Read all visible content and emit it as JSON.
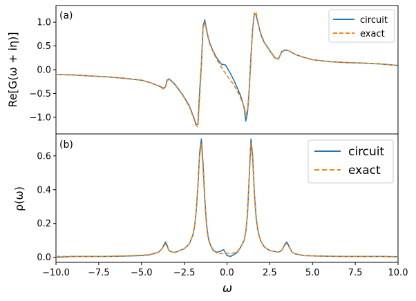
{
  "colors": {
    "circuit": "#1f77b4",
    "exact": "#ff7f0e",
    "axes": "#000000",
    "background": "#ffffff"
  },
  "xaxis": {
    "label": "ω",
    "ticks": [
      -10.0,
      -7.5,
      -5.0,
      -2.5,
      0.0,
      2.5,
      5.0,
      7.5,
      10.0
    ],
    "tick_labels": [
      "−10.0",
      "−7.5",
      "−5.0",
      "−2.5",
      "0.0",
      "2.5",
      "5.0",
      "7.5",
      "10.0"
    ]
  },
  "panels": [
    {
      "tag": "(a)",
      "ylabel": "Re[G(ω + iη)]",
      "ylim": [
        -1.35,
        1.35
      ],
      "yticks": [
        -1.0,
        -0.5,
        0.0,
        0.5,
        1.0
      ],
      "ytick_labels": [
        "−1.0",
        "−0.5",
        "0.0",
        "0.5",
        "1.0"
      ],
      "legend": {
        "position": "top-right",
        "items": [
          "circuit",
          "exact"
        ]
      }
    },
    {
      "tag": "(b)",
      "ylabel": "ρ(ω)",
      "ylim": [
        -0.03,
        0.73
      ],
      "yticks": [
        0.0,
        0.2,
        0.4,
        0.6
      ],
      "ytick_labels": [
        "0.0",
        "0.2",
        "0.4",
        "0.6"
      ],
      "legend": {
        "position": "top-right",
        "items": [
          "circuit",
          "exact"
        ]
      }
    }
  ],
  "chart_data": [
    {
      "type": "line",
      "panel": "(a)",
      "xlabel": "",
      "ylabel": "Re[G(ω + iη)]",
      "xlim": [
        -10,
        10
      ],
      "ylim": [
        -1.35,
        1.35
      ],
      "legend_position": "top-right",
      "series": [
        {
          "name": "circuit",
          "style": "solid",
          "x": [
            -10,
            -9,
            -8,
            -7,
            -6,
            -5,
            -4.5,
            -4,
            -3.7,
            -3.6,
            -3.5,
            -3.4,
            -3.2,
            -3,
            -2.6,
            -2.2,
            -2,
            -1.8,
            -1.7,
            -1.6,
            -1.5,
            -1.4,
            -1.3,
            -1.2,
            -1.1,
            -1,
            -0.8,
            -0.6,
            -0.4,
            -0.3,
            -0.2,
            -0.1,
            0,
            0.1,
            0.2,
            0.4,
            0.6,
            0.8,
            1,
            1.1,
            1.2,
            1.3,
            1.4,
            1.5,
            1.6,
            1.7,
            1.8,
            1.9,
            2,
            2.2,
            2.5,
            2.8,
            3,
            3.2,
            3.4,
            3.5,
            3.6,
            3.8,
            4,
            4.5,
            5,
            6,
            7,
            8,
            9,
            10
          ],
          "y": [
            -0.1,
            -0.11,
            -0.13,
            -0.15,
            -0.18,
            -0.22,
            -0.27,
            -0.34,
            -0.39,
            -0.36,
            -0.22,
            -0.19,
            -0.25,
            -0.33,
            -0.52,
            -0.76,
            -0.95,
            -1.15,
            -1.15,
            -0.45,
            0.1,
            0.92,
            1.05,
            0.85,
            0.68,
            0.55,
            0.38,
            0.25,
            0.15,
            0.11,
            0.11,
            0.1,
            0.05,
            -0.02,
            -0.08,
            -0.22,
            -0.38,
            -0.55,
            -0.8,
            -1.08,
            -0.9,
            -0.4,
            0.3,
            0.85,
            1.18,
            1.15,
            1.0,
            0.85,
            0.72,
            0.56,
            0.4,
            0.25,
            0.22,
            0.38,
            0.42,
            0.41,
            0.4,
            0.36,
            0.32,
            0.26,
            0.21,
            0.17,
            0.15,
            0.14,
            0.12,
            0.09
          ]
        },
        {
          "name": "exact",
          "style": "dashed",
          "x": [
            -10,
            -9,
            -8,
            -7,
            -6,
            -5,
            -4.5,
            -4,
            -3.7,
            -3.6,
            -3.5,
            -3.4,
            -3.2,
            -3,
            -2.6,
            -2.2,
            -2,
            -1.8,
            -1.7,
            -1.6,
            -1.5,
            -1.4,
            -1.3,
            -1.2,
            -1.1,
            -1,
            -0.8,
            -0.6,
            -0.4,
            -0.2,
            0,
            0.2,
            0.4,
            0.6,
            0.8,
            1,
            1.1,
            1.2,
            1.3,
            1.4,
            1.5,
            1.6,
            1.7,
            1.8,
            1.9,
            2,
            2.2,
            2.5,
            2.8,
            3,
            3.2,
            3.4,
            3.5,
            3.6,
            3.8,
            4,
            4.5,
            5,
            6,
            7,
            8,
            9,
            10
          ],
          "y": [
            -0.1,
            -0.11,
            -0.13,
            -0.15,
            -0.18,
            -0.22,
            -0.27,
            -0.34,
            -0.41,
            -0.37,
            -0.24,
            -0.2,
            -0.26,
            -0.34,
            -0.53,
            -0.78,
            -0.97,
            -1.18,
            -1.2,
            -0.6,
            0.05,
            0.88,
            1.0,
            0.82,
            0.66,
            0.53,
            0.36,
            0.22,
            0.1,
            -0.02,
            -0.12,
            -0.22,
            -0.32,
            -0.45,
            -0.6,
            -0.78,
            -0.95,
            -0.85,
            -0.45,
            0.25,
            0.85,
            1.22,
            1.2,
            1.03,
            0.86,
            0.74,
            0.57,
            0.41,
            0.26,
            0.22,
            0.37,
            0.41,
            0.4,
            0.4,
            0.36,
            0.32,
            0.26,
            0.21,
            0.17,
            0.15,
            0.14,
            0.12,
            0.09
          ]
        }
      ]
    },
    {
      "type": "line",
      "panel": "(b)",
      "xlabel": "ω",
      "ylabel": "ρ(ω)",
      "xlim": [
        -10,
        10
      ],
      "ylim": [
        -0.03,
        0.73
      ],
      "legend_position": "top-right",
      "series": [
        {
          "name": "circuit",
          "style": "solid",
          "x": [
            -10,
            -9,
            -8,
            -7,
            -6,
            -5,
            -4.5,
            -4,
            -3.8,
            -3.7,
            -3.6,
            -3.5,
            -3.4,
            -3.2,
            -3,
            -2.5,
            -2.2,
            -2,
            -1.9,
            -1.8,
            -1.7,
            -1.6,
            -1.5,
            -1.4,
            -1.3,
            -1.2,
            -1.1,
            -1,
            -0.8,
            -0.6,
            -0.4,
            -0.2,
            0,
            0.2,
            0.4,
            0.6,
            0.8,
            1,
            1.1,
            1.2,
            1.3,
            1.4,
            1.5,
            1.6,
            1.7,
            1.8,
            1.9,
            2,
            2.2,
            2.5,
            3,
            3.2,
            3.4,
            3.5,
            3.6,
            3.7,
            3.8,
            4,
            4.5,
            5,
            6,
            7,
            8,
            9,
            10
          ],
          "y": [
            0.0,
            0.005,
            0.005,
            0.005,
            0.007,
            0.01,
            0.015,
            0.03,
            0.05,
            0.07,
            0.09,
            0.07,
            0.04,
            0.03,
            0.03,
            0.05,
            0.08,
            0.13,
            0.18,
            0.27,
            0.42,
            0.62,
            0.7,
            0.55,
            0.35,
            0.2,
            0.12,
            0.08,
            0.04,
            0.03,
            0.035,
            0.045,
            0.01,
            0.005,
            0.015,
            0.03,
            0.06,
            0.1,
            0.15,
            0.26,
            0.48,
            0.7,
            0.6,
            0.38,
            0.24,
            0.16,
            0.12,
            0.09,
            0.06,
            0.04,
            0.03,
            0.04,
            0.08,
            0.09,
            0.07,
            0.05,
            0.03,
            0.02,
            0.01,
            0.008,
            0.006,
            0.005,
            0.005,
            0.005,
            0.003
          ]
        },
        {
          "name": "exact",
          "style": "dashed",
          "x": [
            -10,
            -9,
            -8,
            -7,
            -6,
            -5,
            -4.5,
            -4,
            -3.8,
            -3.7,
            -3.6,
            -3.5,
            -3.4,
            -3.2,
            -3,
            -2.5,
            -2.2,
            -2,
            -1.9,
            -1.8,
            -1.7,
            -1.6,
            -1.5,
            -1.4,
            -1.3,
            -1.2,
            -1.1,
            -1,
            -0.8,
            -0.6,
            -0.4,
            -0.2,
            0,
            0.2,
            0.4,
            0.6,
            0.8,
            1,
            1.1,
            1.2,
            1.3,
            1.4,
            1.5,
            1.6,
            1.7,
            1.8,
            1.9,
            2,
            2.2,
            2.5,
            3,
            3.2,
            3.4,
            3.5,
            3.6,
            3.7,
            3.8,
            4,
            4.5,
            5,
            6,
            7,
            8,
            9,
            10
          ],
          "y": [
            0.005,
            0.005,
            0.005,
            0.006,
            0.008,
            0.012,
            0.017,
            0.03,
            0.05,
            0.065,
            0.08,
            0.065,
            0.04,
            0.03,
            0.03,
            0.05,
            0.08,
            0.13,
            0.18,
            0.27,
            0.42,
            0.6,
            0.67,
            0.52,
            0.33,
            0.19,
            0.11,
            0.075,
            0.04,
            0.025,
            0.022,
            0.022,
            0.025,
            0.022,
            0.025,
            0.035,
            0.06,
            0.1,
            0.15,
            0.26,
            0.48,
            0.68,
            0.58,
            0.37,
            0.23,
            0.16,
            0.12,
            0.09,
            0.06,
            0.04,
            0.03,
            0.04,
            0.075,
            0.08,
            0.065,
            0.05,
            0.03,
            0.02,
            0.01,
            0.008,
            0.006,
            0.005,
            0.005,
            0.005,
            0.004
          ]
        }
      ]
    }
  ]
}
